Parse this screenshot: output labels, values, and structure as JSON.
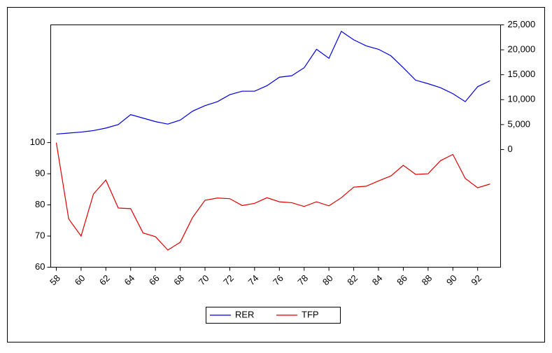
{
  "chart_data": {
    "type": "line",
    "x": [
      58,
      59,
      60,
      61,
      62,
      63,
      64,
      65,
      66,
      67,
      68,
      69,
      70,
      71,
      72,
      73,
      74,
      75,
      76,
      77,
      78,
      79,
      80,
      81,
      82,
      83,
      84,
      85,
      86,
      87,
      88,
      89,
      90,
      91,
      92,
      93
    ],
    "xlim": [
      57.55,
      93.85
    ],
    "xticks": [
      58,
      60,
      62,
      64,
      66,
      68,
      70,
      72,
      74,
      76,
      78,
      80,
      82,
      84,
      86,
      88,
      90,
      92
    ],
    "ylim": [
      60,
      137.8
    ],
    "yticks": [
      60,
      70,
      80,
      90,
      100
    ],
    "y2lim": [
      -23600,
      25000
    ],
    "y2ticks": [
      0,
      {
        "value": 5000,
        "label": "5,000"
      },
      {
        "value": 10000,
        "label": "10,000"
      },
      {
        "value": 15000,
        "label": "15,000"
      },
      {
        "value": 20000,
        "label": "20,000"
      },
      {
        "value": 25000,
        "label": "25,000"
      }
    ],
    "legend": "bottom",
    "series": [
      {
        "name": "RER",
        "color": "#0000dd",
        "axis": "y2",
        "values": [
          3100,
          3300,
          3500,
          3800,
          4300,
          5000,
          7000,
          6300,
          5600,
          5100,
          5900,
          7700,
          8800,
          9600,
          11000,
          11700,
          11700,
          12800,
          14500,
          14800,
          16400,
          20100,
          18300,
          23700,
          22000,
          20800,
          20100,
          18800,
          16400,
          13900,
          13200,
          12400,
          11200,
          9600,
          12600,
          13800
        ]
      },
      {
        "name": "TFP",
        "color": "#dd0000",
        "values": [
          100,
          75.5,
          70,
          83.5,
          88,
          79,
          78.8,
          71,
          69.8,
          65.5,
          68,
          76,
          81.5,
          82.2,
          82,
          79.8,
          80.5,
          82.3,
          81,
          80.7,
          79.5,
          81,
          79.7,
          82.3,
          85.7,
          86,
          87.7,
          89.3,
          92.7,
          89.8,
          90,
          94.2,
          96.2,
          88.5,
          85.5,
          86.7
        ]
      }
    ]
  }
}
